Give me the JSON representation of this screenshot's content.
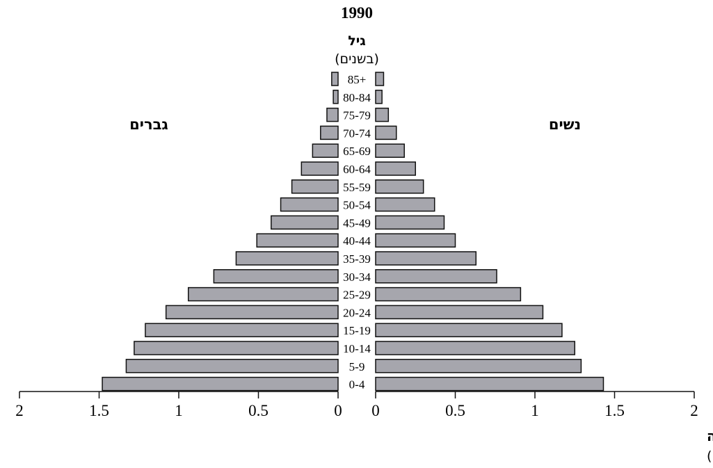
{
  "chart_data": {
    "type": "bar",
    "orientation": "horizontal",
    "layout": "population-pyramid",
    "title": "1990",
    "age_label": "גיל",
    "age_unit": "(בשנים)",
    "categories": [
      "0-4",
      "5-9",
      "10-14",
      "15-19",
      "20-24",
      "25-29",
      "30-34",
      "35-39",
      "40-44",
      "45-49",
      "50-54",
      "55-59",
      "60-64",
      "65-69",
      "70-74",
      "75-79",
      "80-84",
      "85+"
    ],
    "series": [
      {
        "name": "גברים",
        "side": "left",
        "values": [
          1.48,
          1.33,
          1.28,
          1.21,
          1.08,
          0.94,
          0.78,
          0.64,
          0.51,
          0.42,
          0.36,
          0.29,
          0.23,
          0.16,
          0.11,
          0.07,
          0.03,
          0.04
        ]
      },
      {
        "name": "נשים",
        "side": "right",
        "values": [
          1.43,
          1.29,
          1.25,
          1.17,
          1.05,
          0.91,
          0.76,
          0.63,
          0.5,
          0.43,
          0.37,
          0.3,
          0.25,
          0.18,
          0.13,
          0.08,
          0.04,
          0.05
        ]
      }
    ],
    "xlim": [
      0,
      2
    ],
    "x_ticks": [
      "0",
      "0.5",
      "1",
      "1.5",
      "2"
    ],
    "xlabel": "אוכלוסייה",
    "xunit": "(במיליונים)",
    "grid": false,
    "bar_color": "#a6a6ad",
    "edge_color": "#111111"
  }
}
